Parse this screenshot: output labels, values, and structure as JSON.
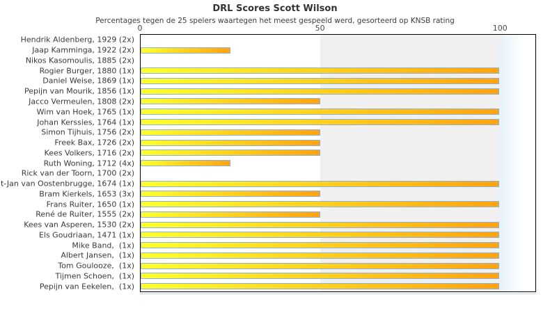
{
  "chart_data": {
    "type": "bar",
    "orientation": "horizontal",
    "title": "DRL Scores Scott Wilson",
    "subtitle": "Percentages tegen de 25 spelers waartegen het meest gespeeld werd, gesorteerd op KNSB rating",
    "xlabel": "",
    "ylabel": "",
    "xlim": [
      0,
      110
    ],
    "xticks": [
      0,
      50,
      100
    ],
    "shaded_band": [
      50,
      100
    ],
    "grid": false,
    "legend_position": "none",
    "categories": [
      "Hendrik Aldenberg, 1929 (2x)",
      "Jaap Kamminga, 1922 (2x)",
      "Nikos Kasomoulis, 1885 (2x)",
      "Rogier Burger, 1880 (1x)",
      "Daniel Weise, 1869 (1x)",
      "Pepijn van Mourik, 1856 (1x)",
      "Jacco Vermeulen, 1808 (2x)",
      "Wim van Hoek, 1765 (1x)",
      "Johan Kerssies, 1764 (1x)",
      "Simon Tijhuis, 1756 (2x)",
      "Freek Bax, 1726 (2x)",
      "Kees Volkers, 1716 (2x)",
      "Ruth Woning, 1712 (4x)",
      "Rick van der Toorn, 1700 (2x)",
      "t-Jan van Oostenbrugge, 1674 (1x)",
      "Bram Kierkels, 1653 (3x)",
      "Frans Ruiter, 1650 (1x)",
      "René de Ruiter, 1555 (2x)",
      "Kees van Asperen, 1530 (2x)",
      "Els Goudriaan, 1471 (1x)",
      "Mike Band,  (1x)",
      "Albert Jansen,  (1x)",
      "Tom Goulooze,  (1x)",
      "Tijmen Schoen,  (1x)",
      "Pepijn van Eekelen,  (1x)"
    ],
    "values": [
      0,
      25,
      0,
      100,
      100,
      100,
      50,
      100,
      100,
      50,
      50,
      50,
      25,
      0,
      100,
      50,
      100,
      50,
      100,
      100,
      100,
      100,
      100,
      100,
      100
    ],
    "colors": {
      "bar_gradient_start": "#ffff2e",
      "bar_gradient_end": "#ffa30f",
      "bar_border": "#8ab2da",
      "band_mid": "#f0f0f0",
      "band_right_start": "#e8f2fa",
      "band_right_end": "#ffffff",
      "plot_border": "#000000",
      "title_color": "#333333",
      "label_color": "#3a3a3a",
      "tick_color": "#4a4a4a"
    }
  }
}
